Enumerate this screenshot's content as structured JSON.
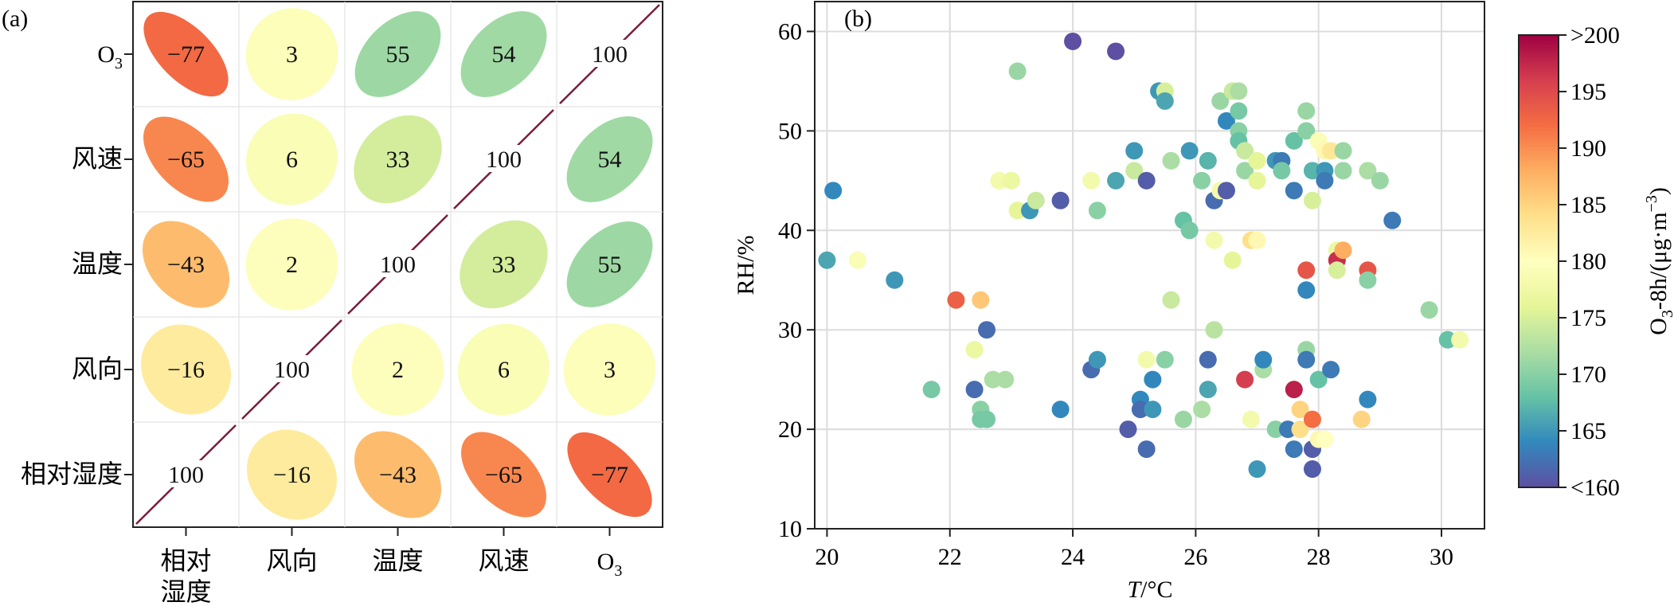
{
  "panels": {
    "a": {
      "label": "(a)",
      "variables": [
        "相对湿度",
        "风向",
        "温度",
        "风速",
        "O3"
      ],
      "row_labels": [
        "O3",
        "风速",
        "温度",
        "风向",
        "相对湿度"
      ],
      "col_labels": [
        "相对湿度",
        "风向",
        "温度",
        "风速",
        "O3"
      ]
    },
    "b": {
      "label": "(b)",
      "xlabel": "T/°C",
      "ylabel": "RH/%",
      "colorbar_title": "O3-8h/(μg·m⁻³)",
      "colorbar_ticks": [
        "<160",
        "165",
        "170",
        "175",
        "180",
        "185",
        "190",
        "195",
        ">200"
      ]
    }
  },
  "chart_data": [
    {
      "type": "heatmap",
      "title": "",
      "rows": [
        "O3",
        "风速",
        "温度",
        "风向",
        "相对湿度"
      ],
      "cols": [
        "相对湿度",
        "风向",
        "温度",
        "风速",
        "O3"
      ],
      "values": [
        [
          -77,
          3,
          55,
          54,
          100
        ],
        [
          -65,
          6,
          33,
          100,
          54
        ],
        [
          -43,
          2,
          100,
          33,
          55
        ],
        [
          -16,
          100,
          2,
          6,
          3
        ],
        [
          100,
          -16,
          -43,
          -65,
          -77
        ]
      ],
      "colorscale": "Spectral",
      "grid": true
    },
    {
      "type": "scatter",
      "title": "",
      "xlabel": "T/°C",
      "ylabel": "RH/%",
      "xlim": [
        19.8,
        30.7
      ],
      "ylim": [
        10,
        63
      ],
      "xticks": [
        20,
        22,
        24,
        26,
        28,
        30
      ],
      "yticks": [
        10,
        20,
        30,
        40,
        50,
        60
      ],
      "grid": true,
      "colorbar": {
        "label": "O3-8h/(μg·m⁻³)",
        "range": [
          160,
          200
        ],
        "ticks": [
          "<160",
          "165",
          "170",
          "175",
          "180",
          "185",
          "190",
          "195",
          ">200"
        ]
      },
      "points": [
        {
          "x": 20.0,
          "y": 37,
          "c": 166
        },
        {
          "x": 20.1,
          "y": 44,
          "c": 164
        },
        {
          "x": 20.5,
          "y": 37,
          "c": 179
        },
        {
          "x": 21.1,
          "y": 35,
          "c": 165
        },
        {
          "x": 21.7,
          "y": 24,
          "c": 169
        },
        {
          "x": 22.1,
          "y": 33,
          "c": 193
        },
        {
          "x": 22.4,
          "y": 28,
          "c": 177
        },
        {
          "x": 22.4,
          "y": 24,
          "c": 162
        },
        {
          "x": 22.5,
          "y": 22,
          "c": 170
        },
        {
          "x": 22.5,
          "y": 21,
          "c": 169
        },
        {
          "x": 22.5,
          "y": 33,
          "c": 186
        },
        {
          "x": 22.6,
          "y": 30,
          "c": 162
        },
        {
          "x": 22.6,
          "y": 21,
          "c": 169
        },
        {
          "x": 22.7,
          "y": 25,
          "c": 172
        },
        {
          "x": 22.8,
          "y": 45,
          "c": 178
        },
        {
          "x": 22.9,
          "y": 25,
          "c": 172
        },
        {
          "x": 23.0,
          "y": 45,
          "c": 177
        },
        {
          "x": 23.1,
          "y": 42,
          "c": 176
        },
        {
          "x": 23.1,
          "y": 56,
          "c": 171
        },
        {
          "x": 23.3,
          "y": 42,
          "c": 165
        },
        {
          "x": 23.4,
          "y": 43,
          "c": 174
        },
        {
          "x": 23.8,
          "y": 43,
          "c": 161
        },
        {
          "x": 23.8,
          "y": 22,
          "c": 164
        },
        {
          "x": 24.0,
          "y": 59,
          "c": 160
        },
        {
          "x": 24.3,
          "y": 45,
          "c": 178
        },
        {
          "x": 24.3,
          "y": 26,
          "c": 162
        },
        {
          "x": 24.4,
          "y": 42,
          "c": 170
        },
        {
          "x": 24.4,
          "y": 27,
          "c": 165
        },
        {
          "x": 24.7,
          "y": 58,
          "c": 160
        },
        {
          "x": 24.7,
          "y": 45,
          "c": 166
        },
        {
          "x": 24.9,
          "y": 20,
          "c": 161
        },
        {
          "x": 25.0,
          "y": 46,
          "c": 174
        },
        {
          "x": 25.0,
          "y": 48,
          "c": 165
        },
        {
          "x": 25.1,
          "y": 23,
          "c": 164
        },
        {
          "x": 25.1,
          "y": 22,
          "c": 162
        },
        {
          "x": 25.2,
          "y": 45,
          "c": 161
        },
        {
          "x": 25.2,
          "y": 27,
          "c": 178
        },
        {
          "x": 25.2,
          "y": 18,
          "c": 162
        },
        {
          "x": 25.3,
          "y": 25,
          "c": 164
        },
        {
          "x": 25.3,
          "y": 22,
          "c": 165
        },
        {
          "x": 25.4,
          "y": 54,
          "c": 165
        },
        {
          "x": 25.5,
          "y": 54,
          "c": 175
        },
        {
          "x": 25.5,
          "y": 53,
          "c": 166
        },
        {
          "x": 25.5,
          "y": 27,
          "c": 170
        },
        {
          "x": 25.6,
          "y": 47,
          "c": 172
        },
        {
          "x": 25.6,
          "y": 33,
          "c": 174
        },
        {
          "x": 25.8,
          "y": 41,
          "c": 168
        },
        {
          "x": 25.8,
          "y": 21,
          "c": 171
        },
        {
          "x": 25.9,
          "y": 48,
          "c": 165
        },
        {
          "x": 25.9,
          "y": 40,
          "c": 169
        },
        {
          "x": 26.1,
          "y": 45,
          "c": 170
        },
        {
          "x": 26.1,
          "y": 22,
          "c": 172
        },
        {
          "x": 26.2,
          "y": 47,
          "c": 167
        },
        {
          "x": 26.2,
          "y": 27,
          "c": 162
        },
        {
          "x": 26.2,
          "y": 24,
          "c": 166
        },
        {
          "x": 26.3,
          "y": 43,
          "c": 162
        },
        {
          "x": 26.3,
          "y": 39,
          "c": 178
        },
        {
          "x": 26.3,
          "y": 30,
          "c": 173
        },
        {
          "x": 26.4,
          "y": 53,
          "c": 171
        },
        {
          "x": 26.4,
          "y": 44,
          "c": 178
        },
        {
          "x": 26.5,
          "y": 51,
          "c": 164
        },
        {
          "x": 26.5,
          "y": 44,
          "c": 161
        },
        {
          "x": 26.6,
          "y": 54,
          "c": 174
        },
        {
          "x": 26.6,
          "y": 37,
          "c": 176
        },
        {
          "x": 26.7,
          "y": 54,
          "c": 172
        },
        {
          "x": 26.7,
          "y": 52,
          "c": 169
        },
        {
          "x": 26.7,
          "y": 50,
          "c": 170
        },
        {
          "x": 26.7,
          "y": 49,
          "c": 168
        },
        {
          "x": 26.8,
          "y": 48,
          "c": 174
        },
        {
          "x": 26.8,
          "y": 46,
          "c": 171
        },
        {
          "x": 26.8,
          "y": 25,
          "c": 196
        },
        {
          "x": 26.9,
          "y": 39,
          "c": 184
        },
        {
          "x": 26.9,
          "y": 21,
          "c": 178
        },
        {
          "x": 27.0,
          "y": 47,
          "c": 176
        },
        {
          "x": 27.0,
          "y": 45,
          "c": 176
        },
        {
          "x": 27.0,
          "y": 39,
          "c": 181
        },
        {
          "x": 27.0,
          "y": 16,
          "c": 165
        },
        {
          "x": 27.1,
          "y": 26,
          "c": 172
        },
        {
          "x": 27.1,
          "y": 27,
          "c": 164
        },
        {
          "x": 27.3,
          "y": 47,
          "c": 165
        },
        {
          "x": 27.3,
          "y": 20,
          "c": 170
        },
        {
          "x": 27.4,
          "y": 47,
          "c": 163
        },
        {
          "x": 27.4,
          "y": 46,
          "c": 169
        },
        {
          "x": 27.5,
          "y": 20,
          "c": 163
        },
        {
          "x": 27.6,
          "y": 49,
          "c": 168
        },
        {
          "x": 27.6,
          "y": 44,
          "c": 163
        },
        {
          "x": 27.6,
          "y": 24,
          "c": 198
        },
        {
          "x": 27.6,
          "y": 18,
          "c": 163
        },
        {
          "x": 27.7,
          "y": 22,
          "c": 185
        },
        {
          "x": 27.7,
          "y": 20,
          "c": 184
        },
        {
          "x": 27.8,
          "y": 52,
          "c": 171
        },
        {
          "x": 27.8,
          "y": 50,
          "c": 170
        },
        {
          "x": 27.8,
          "y": 36,
          "c": 194
        },
        {
          "x": 27.8,
          "y": 34,
          "c": 164
        },
        {
          "x": 27.8,
          "y": 28,
          "c": 171
        },
        {
          "x": 27.8,
          "y": 27,
          "c": 163
        },
        {
          "x": 27.9,
          "y": 46,
          "c": 167
        },
        {
          "x": 27.9,
          "y": 43,
          "c": 175
        },
        {
          "x": 27.9,
          "y": 21,
          "c": 192
        },
        {
          "x": 27.9,
          "y": 18,
          "c": 161
        },
        {
          "x": 27.9,
          "y": 16,
          "c": 161
        },
        {
          "x": 28.0,
          "y": 49,
          "c": 179
        },
        {
          "x": 28.0,
          "y": 25,
          "c": 168
        },
        {
          "x": 28.0,
          "y": 19,
          "c": 181
        },
        {
          "x": 28.1,
          "y": 48,
          "c": 181
        },
        {
          "x": 28.1,
          "y": 46,
          "c": 165
        },
        {
          "x": 28.1,
          "y": 45,
          "c": 163
        },
        {
          "x": 28.1,
          "y": 19,
          "c": 180
        },
        {
          "x": 28.2,
          "y": 48,
          "c": 183
        },
        {
          "x": 28.2,
          "y": 26,
          "c": 163
        },
        {
          "x": 28.3,
          "y": 38,
          "c": 177
        },
        {
          "x": 28.3,
          "y": 37,
          "c": 197
        },
        {
          "x": 28.3,
          "y": 36,
          "c": 175
        },
        {
          "x": 28.4,
          "y": 48,
          "c": 171
        },
        {
          "x": 28.4,
          "y": 46,
          "c": 171
        },
        {
          "x": 28.4,
          "y": 38,
          "c": 188
        },
        {
          "x": 28.7,
          "y": 21,
          "c": 185
        },
        {
          "x": 28.8,
          "y": 46,
          "c": 172
        },
        {
          "x": 28.8,
          "y": 36,
          "c": 194
        },
        {
          "x": 28.8,
          "y": 35,
          "c": 170
        },
        {
          "x": 28.8,
          "y": 23,
          "c": 164
        },
        {
          "x": 29.0,
          "y": 45,
          "c": 171
        },
        {
          "x": 29.2,
          "y": 41,
          "c": 163
        },
        {
          "x": 29.8,
          "y": 32,
          "c": 171
        },
        {
          "x": 30.1,
          "y": 29,
          "c": 168
        },
        {
          "x": 30.3,
          "y": 29,
          "c": 178
        }
      ]
    }
  ]
}
